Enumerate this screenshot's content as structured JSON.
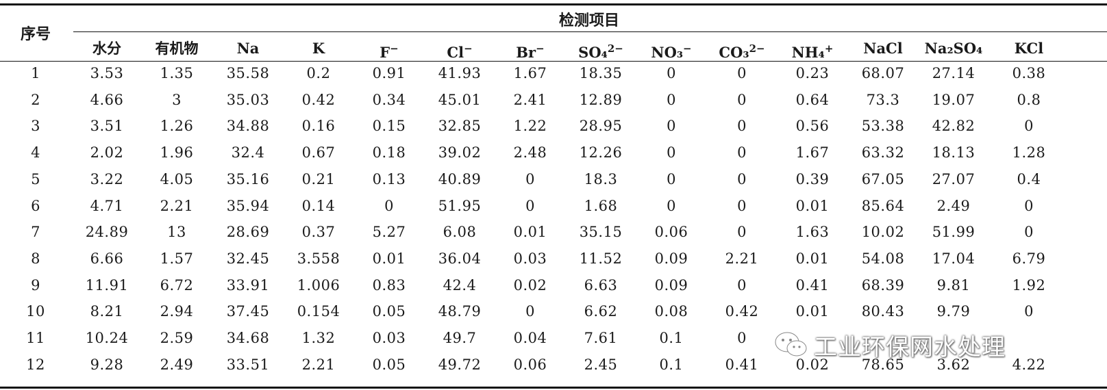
{
  "table": {
    "seq_header": "序号",
    "group_header": "检测项目",
    "columns": [
      {
        "base": "水分",
        "sup": ""
      },
      {
        "base": "有机物",
        "sup": ""
      },
      {
        "base": "Na",
        "sup": ""
      },
      {
        "base": "K",
        "sup": ""
      },
      {
        "base": "F",
        "sup": "−"
      },
      {
        "base": "Cl",
        "sup": "−"
      },
      {
        "base": "Br",
        "sup": "−"
      },
      {
        "base": "SO₄",
        "sup": "2−"
      },
      {
        "base": "NO₃",
        "sup": "−"
      },
      {
        "base": "CO₃",
        "sup": "2−"
      },
      {
        "base": "NH₄",
        "sup": "+"
      },
      {
        "base": "NaCl",
        "sup": ""
      },
      {
        "base": "Na₂SO₄",
        "sup": ""
      },
      {
        "base": "KCl",
        "sup": ""
      }
    ],
    "rows": [
      [
        "1",
        "3.53",
        "1.35",
        "35.58",
        "0.2",
        "0.91",
        "41.93",
        "1.67",
        "18.35",
        "0",
        "0",
        "0.23",
        "68.07",
        "27.14",
        "0.38"
      ],
      [
        "2",
        "4.66",
        "3",
        "35.03",
        "0.42",
        "0.34",
        "45.01",
        "2.41",
        "12.89",
        "0",
        "0",
        "0.64",
        "73.3",
        "19.07",
        "0.8"
      ],
      [
        "3",
        "3.51",
        "1.26",
        "34.88",
        "0.16",
        "0.15",
        "32.85",
        "1.22",
        "28.95",
        "0",
        "0",
        "0.56",
        "53.38",
        "42.82",
        "0"
      ],
      [
        "4",
        "2.02",
        "1.96",
        "32.4",
        "0.67",
        "0.18",
        "39.02",
        "2.48",
        "12.26",
        "0",
        "0",
        "1.67",
        "63.32",
        "18.13",
        "1.28"
      ],
      [
        "5",
        "3.22",
        "4.05",
        "35.16",
        "0.21",
        "0.13",
        "40.89",
        "0",
        "18.3",
        "0",
        "0",
        "0.39",
        "67.05",
        "27.07",
        "0.4"
      ],
      [
        "6",
        "4.71",
        "2.21",
        "35.94",
        "0.14",
        "0",
        "51.95",
        "0",
        "1.68",
        "0",
        "0",
        "0.01",
        "85.64",
        "2.49",
        "0"
      ],
      [
        "7",
        "24.89",
        "13",
        "28.69",
        "0.37",
        "5.27",
        "6.08",
        "0.01",
        "35.15",
        "0.06",
        "0",
        "1.63",
        "10.02",
        "51.99",
        "0"
      ],
      [
        "8",
        "6.66",
        "1.57",
        "32.45",
        "3.558",
        "0.01",
        "36.04",
        "0.03",
        "11.52",
        "0.09",
        "2.21",
        "0.01",
        "54.08",
        "17.04",
        "6.79"
      ],
      [
        "9",
        "11.91",
        "6.72",
        "33.91",
        "1.006",
        "0.83",
        "42.4",
        "0.02",
        "6.63",
        "0.09",
        "0",
        "0.41",
        "68.39",
        "9.81",
        "1.92"
      ],
      [
        "10",
        "8.21",
        "2.94",
        "37.45",
        "0.154",
        "0.05",
        "48.79",
        "0",
        "6.62",
        "0.08",
        "0.42",
        "0.01",
        "80.43",
        "9.79",
        "0"
      ],
      [
        "11",
        "10.24",
        "2.59",
        "34.68",
        "1.32",
        "0.03",
        "49.7",
        "0.04",
        "7.61",
        "0.1",
        "0",
        "",
        "",
        "",
        ""
      ],
      [
        "12",
        "9.28",
        "2.49",
        "33.51",
        "2.21",
        "0.05",
        "49.72",
        "0.06",
        "2.45",
        "0.1",
        "0.41",
        "0.02",
        "78.65",
        "3.62",
        "4.22"
      ]
    ]
  },
  "watermark": {
    "text": "工业环保网水处理",
    "icon": "wechat-icon"
  }
}
